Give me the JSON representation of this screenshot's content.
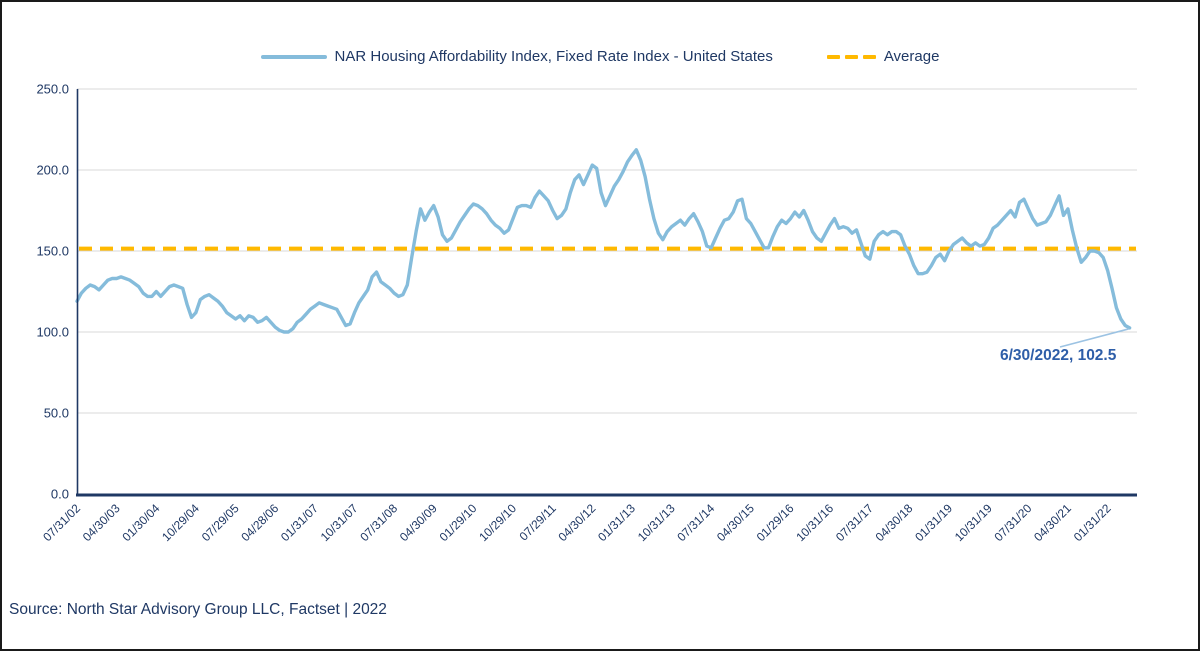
{
  "colors": {
    "series_blue": "#85BCDB",
    "average_orange": "#FFB900",
    "text_navy": "#1F3864",
    "annotation_blue": "#2E5EA8",
    "gridline_gray": "#D9D9D9",
    "axis_navy": "#1F3864",
    "leader_blue": "#9CC3E3"
  },
  "legend": {
    "items": [
      {
        "label": "NAR Housing Affordability Index, Fixed Rate Index - United States",
        "color": "#85BCDB",
        "style": "solid"
      },
      {
        "label": "Average",
        "color": "#FFB900",
        "style": "dashed"
      }
    ]
  },
  "annotation": {
    "text": "6/30/2022, 102.5",
    "x_index": 239,
    "y_value": 102.5
  },
  "source_note": "Source: North Star Advisory Group LLC, Factset | 2022",
  "chart_data": {
    "type": "line",
    "title": "",
    "xlabel": "",
    "ylabel": "",
    "grid": "horizontal",
    "legend_position": "top",
    "y_range": [
      0,
      250
    ],
    "y_tick_labels": [
      "250.0",
      "200.0",
      "150.0",
      "100.0",
      "50.0",
      "0.0"
    ],
    "y_tick_values": [
      250,
      200,
      150,
      100,
      50,
      0
    ],
    "x_tick_labels": [
      "07/31/02",
      "04/30/03",
      "01/30/04",
      "10/29/04",
      "07/29/05",
      "04/28/06",
      "01/31/07",
      "10/31/07",
      "07/31/08",
      "04/30/09",
      "01/29/10",
      "10/29/10",
      "07/29/11",
      "04/30/12",
      "01/31/13",
      "10/31/13",
      "07/31/14",
      "04/30/15",
      "01/29/16",
      "10/31/16",
      "07/31/17",
      "04/30/18",
      "01/31/19",
      "10/31/19",
      "07/31/20",
      "04/30/21",
      "01/31/22"
    ],
    "x_tick_every_n_points": 9,
    "series": [
      {
        "name": "NAR Housing Affordability Index, Fixed Rate Index - United States",
        "kind": "line",
        "values": [
          119,
          124,
          127,
          129,
          128,
          126,
          129,
          132,
          133,
          133,
          134,
          133,
          132,
          130,
          128,
          124,
          122,
          122,
          125,
          122,
          125,
          128,
          129,
          128,
          127,
          117,
          109,
          112,
          120,
          122,
          123,
          121,
          119,
          116,
          112,
          110,
          108,
          110,
          107,
          110,
          109,
          106,
          107,
          109,
          106,
          103,
          101,
          100,
          100,
          102,
          106,
          108,
          111,
          114,
          116,
          118,
          117,
          116,
          115,
          114,
          109,
          104,
          105,
          112,
          118,
          122,
          126,
          134,
          137,
          131,
          129,
          127,
          124,
          122,
          123,
          129,
          146,
          162,
          176,
          169,
          174,
          178,
          171,
          160,
          156,
          158,
          163,
          168,
          172,
          176,
          179,
          178,
          176,
          173,
          169,
          166,
          164,
          161,
          163,
          170,
          177,
          178,
          178,
          177,
          183,
          187,
          184,
          181,
          175,
          170,
          172,
          176,
          186,
          194,
          197,
          191,
          197,
          203,
          201,
          186,
          178,
          184,
          190,
          194,
          199,
          205,
          209,
          212.5,
          206,
          196,
          182,
          170,
          161,
          157,
          162,
          165,
          167,
          169,
          166,
          170,
          173,
          168,
          162,
          153,
          152,
          158,
          164,
          169,
          170,
          174,
          181,
          182,
          170,
          167,
          162,
          157,
          152,
          152,
          159,
          165,
          169,
          167,
          170,
          174,
          171,
          175,
          169,
          162,
          158,
          156,
          161,
          166,
          170,
          164,
          165,
          164,
          161,
          163,
          155,
          147,
          145,
          156,
          160,
          162,
          160,
          162,
          162,
          160,
          153,
          148,
          141,
          136,
          136,
          137,
          141,
          146,
          148,
          144,
          150,
          154,
          156,
          158,
          155,
          153,
          155,
          153,
          154,
          158,
          164,
          166,
          169,
          172,
          175,
          171,
          180,
          182,
          176,
          170,
          166,
          167,
          168,
          172,
          178,
          184,
          172,
          176,
          163,
          152,
          143,
          146,
          150,
          150,
          149,
          146,
          138,
          127,
          115,
          108,
          104,
          102.5
        ]
      },
      {
        "name": "Average",
        "kind": "constant-line",
        "value": 151.5
      }
    ]
  }
}
